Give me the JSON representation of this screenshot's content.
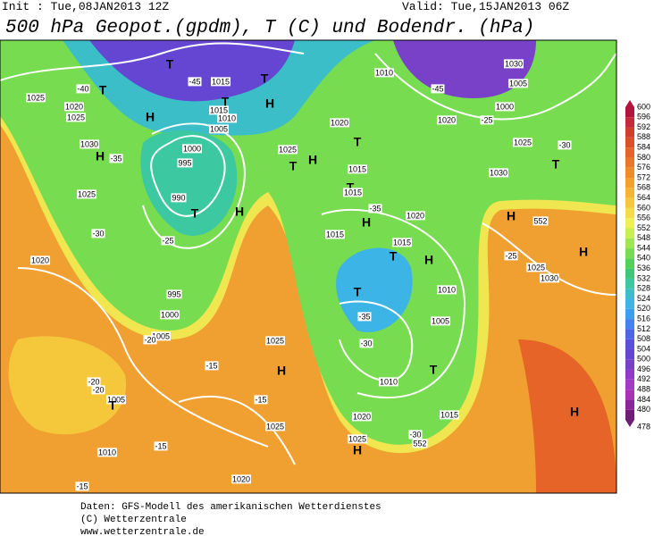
{
  "header": {
    "init": "Init : Tue,08JAN2013 12Z",
    "valid": "Valid: Tue,15JAN2013 06Z",
    "title": "500 hPa Geopot.(gpdm), T (C) und Bodendr. (hPa)"
  },
  "legend": {
    "labels": [
      "600",
      "596",
      "592",
      "588",
      "584",
      "580",
      "576",
      "572",
      "568",
      "564",
      "560",
      "556",
      "552",
      "548",
      "544",
      "540",
      "536",
      "532",
      "528",
      "524",
      "520",
      "516",
      "512",
      "508",
      "504",
      "500",
      "496",
      "492",
      "488",
      "484",
      "480",
      "478"
    ],
    "colors": [
      "#b4143c",
      "#c8283c",
      "#d23c32",
      "#dc5028",
      "#e66428",
      "#eb7828",
      "#f08c28",
      "#f5a028",
      "#f5b432",
      "#f5c83c",
      "#f5dc46",
      "#f0f050",
      "#c8f050",
      "#a0e650",
      "#78dc50",
      "#50d25a",
      "#3cc878",
      "#3cc8a0",
      "#3cbec8",
      "#3cb4e6",
      "#3ca0f0",
      "#4682f0",
      "#5064e6",
      "#5a50dc",
      "#6446d2",
      "#7841c8",
      "#8c3cc8",
      "#a03cc8",
      "#aa32b4",
      "#8c2896",
      "#6e1e78"
    ]
  },
  "map": {
    "labels": [
      "1025",
      "1020",
      "-40",
      "T",
      "H",
      "1025",
      "1030",
      "H",
      "-35",
      "1025",
      "T",
      "-45",
      "1015",
      "T",
      "T",
      "H",
      "1015",
      "1010",
      "1005",
      "1000",
      "995",
      "990",
      "T",
      "-25",
      "995",
      "1000",
      "1005",
      "-30",
      "1020",
      "-20",
      "-20",
      "-20",
      "1005",
      "T",
      "-15",
      "1025",
      "H",
      "-15",
      "1025",
      "1010",
      "-15",
      "-15",
      "1020",
      "H",
      "1025",
      "T",
      "1030",
      "1010",
      "1020",
      "-45",
      "1005",
      "1000",
      "1020",
      "T",
      "1015",
      "H",
      "T",
      "1015",
      "-35",
      "1020",
      "H",
      "1015",
      "1015",
      "H",
      "T",
      "1010",
      "T",
      "-35",
      "1005",
      "T",
      "-30",
      "1010",
      "1020",
      "1015",
      "-30",
      "1025",
      "H",
      "H",
      "1025",
      "1030",
      "H",
      "-25",
      "H",
      "1030",
      "1025",
      "T",
      "-30",
      "-25",
      "552",
      "552"
    ]
  },
  "footer": {
    "lines": [
      "Daten: GFS-Modell des amerikanischen Wetterdienstes",
      "(C) Wetterzentrale",
      "www.wetterzentrale.de"
    ]
  }
}
